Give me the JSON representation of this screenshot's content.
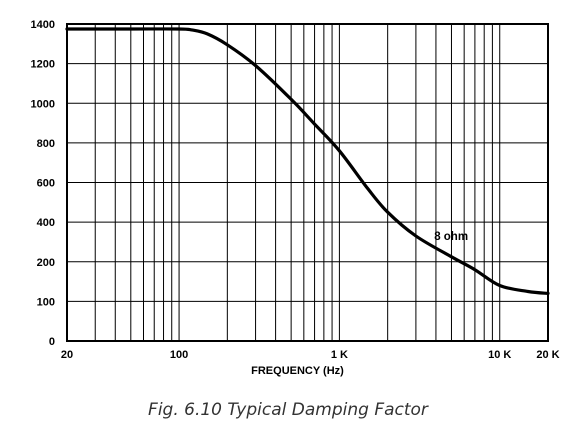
{
  "caption": "Fig. 6.10  Typical Damping Factor",
  "chart_data": {
    "type": "line",
    "title": "",
    "xlabel": "FREQUENCY (Hz)",
    "ylabel": "",
    "xscale": "log",
    "xlim": [
      20,
      20000
    ],
    "ylim": [
      0,
      1400
    ],
    "grid": true,
    "x_ticks": [
      {
        "value": 20,
        "label": "20"
      },
      {
        "value": 100,
        "label": "100"
      },
      {
        "value": 1000,
        "label": "1 K"
      },
      {
        "value": 10000,
        "label": "10 K"
      },
      {
        "value": 20000,
        "label": "20 K"
      }
    ],
    "y_ticks": [
      {
        "value": 0,
        "label": "0"
      },
      {
        "value": 100,
        "label": "100"
      },
      {
        "value": 200,
        "label": "200"
      },
      {
        "value": 400,
        "label": "400"
      },
      {
        "value": 600,
        "label": "600"
      },
      {
        "value": 800,
        "label": "800"
      },
      {
        "value": 1000,
        "label": "1000"
      },
      {
        "value": 1200,
        "label": "1200"
      },
      {
        "value": 1400,
        "label": "1400"
      }
    ],
    "series": [
      {
        "name": "8 ohm",
        "color": "#000000",
        "x": [
          20,
          50,
          100,
          120,
          150,
          200,
          300,
          500,
          700,
          1000,
          1500,
          2000,
          3000,
          5000,
          7000,
          10000,
          15000,
          20000
        ],
        "y": [
          1375,
          1375,
          1375,
          1370,
          1350,
          1295,
          1190,
          1020,
          895,
          760,
          570,
          450,
          330,
          225,
          180,
          140,
          125,
          120
        ]
      }
    ]
  }
}
